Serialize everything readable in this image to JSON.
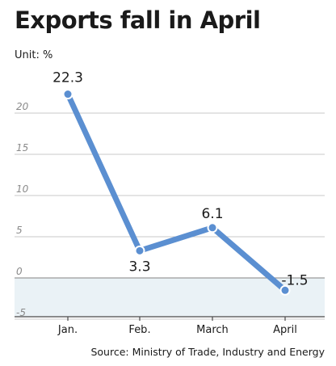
{
  "header": {
    "title": "Exports fall in April",
    "unit": "Unit: %"
  },
  "footer": {
    "source": "Source: Ministry of Trade, Industry and Energy"
  },
  "colors": {
    "line": "#5b8fd1",
    "negative_band": "#eaf2f6",
    "grid": "#c8c8c8",
    "axis": "#4a4a4a"
  },
  "chart_data": {
    "type": "line",
    "title": "Exports fall in April",
    "xlabel": "",
    "ylabel": "",
    "unit": "%",
    "categories": [
      "Jan.",
      "Feb.",
      "March",
      "April"
    ],
    "values": [
      22.3,
      3.3,
      6.1,
      -1.5
    ],
    "data_labels": [
      "22.3",
      "3.3",
      "6.1",
      "-1.5"
    ],
    "yticks": [
      20,
      15,
      10,
      5,
      0,
      -5
    ],
    "ylim": [
      -5,
      22.3
    ],
    "grid": true,
    "negative_region_shaded": true
  }
}
